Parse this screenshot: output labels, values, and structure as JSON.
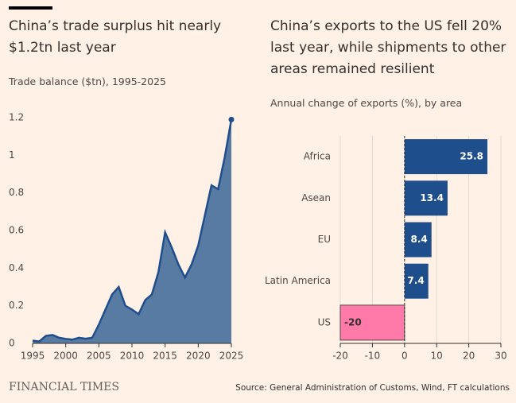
{
  "chart_data": [
    {
      "type": "area",
      "title": "China’s trade surplus hit nearly $1.2tn last year",
      "subtitle": "Trade balance ($tn), 1995-2025",
      "x": [
        1995,
        1996,
        1997,
        1998,
        1999,
        2000,
        2001,
        2002,
        2003,
        2004,
        2005,
        2006,
        2007,
        2008,
        2009,
        2010,
        2011,
        2012,
        2013,
        2014,
        2015,
        2016,
        2017,
        2018,
        2019,
        2020,
        2021,
        2022,
        2023,
        2024,
        2025
      ],
      "values": [
        0.015,
        0.01,
        0.04,
        0.045,
        0.03,
        0.024,
        0.02,
        0.03,
        0.025,
        0.03,
        0.1,
        0.18,
        0.26,
        0.3,
        0.2,
        0.18,
        0.155,
        0.23,
        0.26,
        0.38,
        0.59,
        0.51,
        0.42,
        0.35,
        0.42,
        0.52,
        0.68,
        0.84,
        0.82,
        0.99,
        1.19
      ],
      "color": "#587ba3",
      "line_color": "#1f4e8c",
      "xlim": [
        1995,
        2025
      ],
      "xticks": [
        1995,
        2000,
        2005,
        2010,
        2015,
        2020,
        2025
      ],
      "ylim": [
        0,
        1.2
      ],
      "yticks": [
        0,
        0.2,
        0.4,
        0.6,
        0.8,
        1,
        1.2
      ],
      "grid": false
    },
    {
      "type": "hbar",
      "title": "China’s exports to the US fell 20% last year, while shipments to other areas remained resilient",
      "subtitle": "Annual change of exports (%), by area",
      "categories": [
        "Africa",
        "Asean",
        "EU",
        "Latin America",
        "US"
      ],
      "values": [
        25.8,
        13.4,
        8.4,
        7.4,
        -20
      ],
      "colors": [
        "#1f4e8c",
        "#1f4e8c",
        "#1f4e8c",
        "#1f4e8c",
        "#ff7aa8"
      ],
      "xlim": [
        -20,
        30
      ],
      "xticks": [
        -20,
        -10,
        0,
        10,
        20,
        30
      ],
      "grid": true
    }
  ],
  "brand": "FINANCIAL TIMES",
  "source": "Source: General Administration of Customs, Wind, FT calculations"
}
